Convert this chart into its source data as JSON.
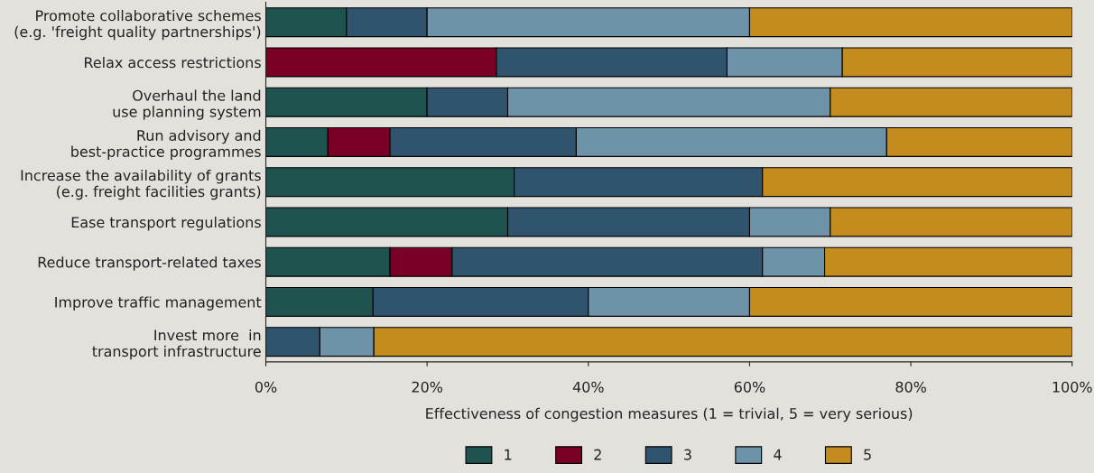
{
  "chart_data": {
    "type": "bar",
    "orientation": "horizontal",
    "stacked": true,
    "categories": [
      "Promote collaborative schemes\n(e.g. 'freight quality partnerships')",
      "Relax access restrictions",
      "Overhaul the land\nuse planning system",
      "Run advisory and\nbest-practice programmes",
      "Increase the availability of grants\n(e.g. freight facilities grants)",
      "Ease transport regulations",
      "Reduce transport-related taxes",
      "Improve traffic management",
      "Invest more  in\ntransport infrastructure"
    ],
    "series": [
      {
        "name": "1",
        "color": "#1f5350",
        "values": [
          10,
          null,
          20,
          7.7,
          30.8,
          30,
          15.4,
          13.3,
          null
        ]
      },
      {
        "name": "2",
        "color": "#7a0026",
        "values": [
          null,
          28.6,
          null,
          7.7,
          null,
          null,
          7.7,
          null,
          null
        ]
      },
      {
        "name": "3",
        "color": "#31546e",
        "values": [
          10,
          28.6,
          10,
          23.1,
          30.8,
          30,
          38.5,
          26.7,
          6.7
        ]
      },
      {
        "name": "4",
        "color": "#6e93a8",
        "values": [
          40,
          14.3,
          40,
          38.5,
          null,
          10,
          7.7,
          20,
          6.7
        ]
      },
      {
        "name": "5",
        "color": "#c48c1e",
        "values": [
          40,
          28.5,
          30,
          23,
          38.4,
          30,
          30.7,
          40,
          86.6
        ]
      }
    ],
    "xlim": [
      0,
      100
    ],
    "xticks": [
      {
        "value": 0,
        "label": "0%"
      },
      {
        "value": 20,
        "label": "20%"
      },
      {
        "value": 40,
        "label": "40%"
      },
      {
        "value": 60,
        "label": "60%"
      },
      {
        "value": 80,
        "label": "80%"
      },
      {
        "value": 100,
        "label": "100%"
      }
    ],
    "xlabel": "Effectiveness of congestion measures (1 = trivial, 5 = very serious)",
    "legend": "bottom",
    "grid": false
  }
}
